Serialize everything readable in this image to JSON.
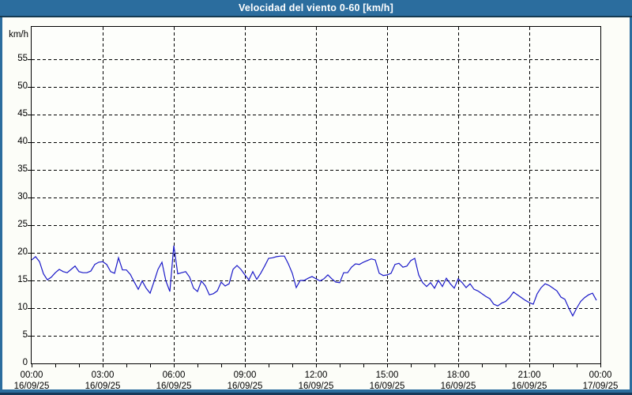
{
  "window": {
    "title": "Velocidad del viento 0-60 [km/h]"
  },
  "colors": {
    "titlebar_bg": "#2b6d9e",
    "titlebar_text": "#ffffff",
    "frame_outer": "#16395a",
    "plot_bg": "#fdfefb",
    "grid": "#000000",
    "series_line": "#1a19c8"
  },
  "chart_data": {
    "type": "line",
    "title": "Velocidad del viento 0-60 [km/h]",
    "ylabel": "km/h",
    "ylim": [
      0,
      61
    ],
    "y_ticks": [
      0,
      5,
      10,
      15,
      20,
      25,
      30,
      35,
      40,
      45,
      50,
      55
    ],
    "x_ticks": [
      {
        "time": "00:00",
        "date": "16/09/25"
      },
      {
        "time": "03:00",
        "date": "16/09/25"
      },
      {
        "time": "06:00",
        "date": "16/09/25"
      },
      {
        "time": "09:00",
        "date": "16/09/25"
      },
      {
        "time": "12:00",
        "date": "16/09/25"
      },
      {
        "time": "15:00",
        "date": "16/09/25"
      },
      {
        "time": "18:00",
        "date": "16/09/25"
      },
      {
        "time": "21:00",
        "date": "16/09/25"
      },
      {
        "time": "00:00",
        "date": "17/09/25"
      }
    ],
    "minor_x_ticks_per_major": 3,
    "grid": "dashed",
    "series": [
      {
        "name": "Velocidad del viento",
        "color": "#1a19c8",
        "start": "2025-09-16 00:00",
        "interval_minutes": 10,
        "unit": "km/h",
        "values": [
          18.7,
          19.3,
          18.4,
          16.2,
          15.1,
          15.6,
          16.4,
          17.0,
          16.6,
          16.4,
          17.0,
          17.6,
          16.6,
          16.4,
          16.4,
          16.7,
          17.9,
          18.3,
          18.4,
          17.9,
          16.6,
          16.3,
          19.1,
          16.9,
          16.9,
          16.1,
          14.7,
          13.4,
          14.9,
          13.6,
          12.7,
          14.8,
          17.0,
          18.3,
          14.9,
          13.0,
          21.3,
          16.2,
          16.4,
          16.6,
          15.6,
          13.6,
          13.0,
          14.9,
          14.0,
          12.4,
          12.6,
          13.1,
          14.7,
          14.0,
          14.4,
          17.0,
          17.7,
          17.0,
          16.0,
          15.1,
          16.6,
          15.2,
          16.3,
          17.6,
          19.0,
          19.1,
          19.3,
          19.4,
          19.4,
          18.0,
          16.3,
          13.7,
          15.0,
          15.0,
          15.4,
          15.7,
          15.3,
          14.9,
          15.3,
          16.0,
          15.3,
          14.7,
          14.6,
          16.4,
          16.4,
          17.4,
          18.0,
          17.9,
          18.3,
          18.6,
          18.9,
          18.7,
          16.3,
          15.9,
          16.0,
          16.3,
          17.9,
          18.1,
          17.4,
          17.6,
          18.6,
          19.0,
          16.0,
          14.6,
          13.9,
          14.6,
          13.6,
          15.0,
          13.9,
          15.4,
          14.4,
          13.6,
          15.3,
          14.6,
          13.7,
          14.4,
          13.4,
          13.1,
          12.6,
          12.1,
          11.7,
          10.7,
          10.4,
          10.9,
          11.2,
          11.9,
          12.9,
          12.4,
          11.9,
          11.4,
          11.0,
          10.7,
          12.6,
          13.7,
          14.4,
          14.1,
          13.6,
          13.1,
          12.0,
          11.6,
          10.0,
          8.6,
          10.0,
          11.2,
          11.9,
          12.4,
          12.7,
          11.4
        ]
      }
    ]
  }
}
